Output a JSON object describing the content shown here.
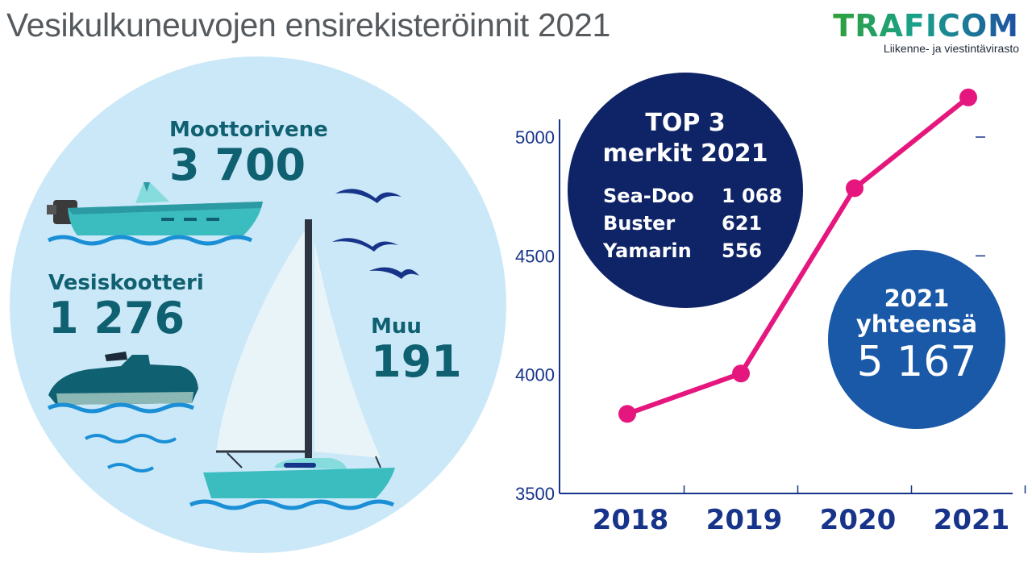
{
  "header": {
    "title": "Vesikulkuneuvojen ensirekisteröinnit 2021",
    "logo_text": "TRAFICOM",
    "logo_subtitle": "Liikenne- ja viestintävirasto"
  },
  "vehicles": [
    {
      "name": "Moottorivene",
      "value": "3 700",
      "icon": "motorboat-icon"
    },
    {
      "name": "Vesiskootteri",
      "value": "1 276",
      "icon": "jet-ski-icon"
    },
    {
      "name": "Muu",
      "value": "191",
      "icon": "sailboat-icon"
    }
  ],
  "top3": {
    "title_line1": "TOP 3",
    "title_line2": "merkit 2021",
    "brands": [
      {
        "name": "Sea-Doo",
        "value": "1 068"
      },
      {
        "name": "Buster",
        "value": "621"
      },
      {
        "name": "Yamarin",
        "value": "556"
      }
    ]
  },
  "total": {
    "line1": "2021",
    "line2": "yhteensä",
    "value": "5 167"
  },
  "colors": {
    "circle_bg": "#cbe8f8",
    "label_teal": "#0f6070",
    "navy": "#0f2466",
    "blue": "#1a58a8",
    "axis": "#17348a",
    "line": "#e5177e",
    "boat_teal": "#3bbdc0",
    "wave": "#1a8fd6"
  },
  "chart_data": {
    "type": "line",
    "categories": [
      "2018",
      "2019",
      "2020",
      "2021"
    ],
    "values": [
      3835,
      4005,
      4785,
      5167
    ],
    "ylim": [
      3500,
      5200
    ],
    "yticks": [
      3500,
      4000,
      4500,
      5000
    ],
    "grid": false
  }
}
